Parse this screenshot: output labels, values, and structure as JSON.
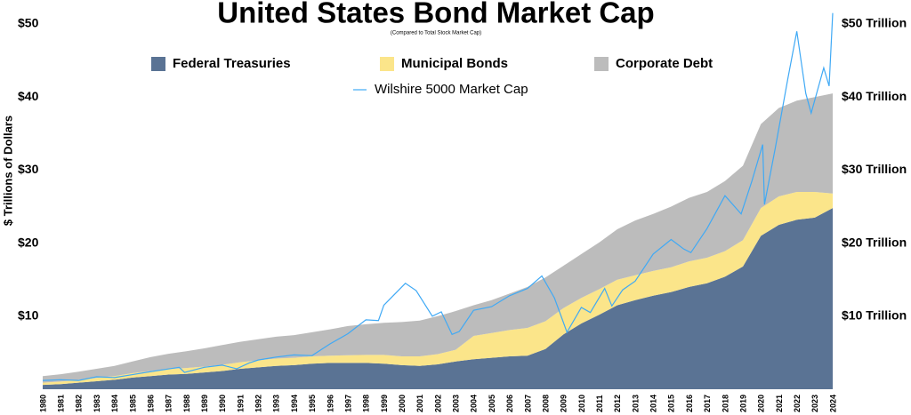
{
  "chart_data": {
    "type": "stacked-area-line",
    "title": "United States Bond Market Cap",
    "subtitle": "(Compared to Total Stock Market Cap)",
    "y_label": "$ Trillions of Dollars",
    "x": [
      1980,
      1981,
      1982,
      1983,
      1984,
      1985,
      1986,
      1987,
      1988,
      1989,
      1990,
      1991,
      1992,
      1993,
      1994,
      1995,
      1996,
      1997,
      1998,
      1999,
      2000,
      2001,
      2002,
      2003,
      2004,
      2005,
      2006,
      2007,
      2008,
      2009,
      2010,
      2011,
      2012,
      2013,
      2014,
      2015,
      2016,
      2017,
      2018,
      2019,
      2020,
      2021,
      2022,
      2023,
      2024
    ],
    "xlim": [
      1980,
      2024
    ],
    "xticks": [
      1980,
      1981,
      1982,
      1983,
      1984,
      1985,
      1986,
      1987,
      1988,
      1989,
      1990,
      1991,
      1992,
      1993,
      1994,
      1995,
      1996,
      1997,
      1998,
      1999,
      2000,
      2001,
      2002,
      2003,
      2004,
      2005,
      2006,
      2007,
      2008,
      2009,
      2010,
      2011,
      2012,
      2013,
      2014,
      2015,
      2016,
      2017,
      2018,
      2019,
      2020,
      2021,
      2022,
      2023,
      2024
    ],
    "ylim": [
      0,
      50
    ],
    "yticks": [
      {
        "value": 10,
        "label": "$10"
      },
      {
        "value": 20,
        "label": "$20"
      },
      {
        "value": 30,
        "label": "$30"
      },
      {
        "value": 40,
        "label": "$40"
      },
      {
        "value": 50,
        "label": "$50"
      }
    ],
    "y2lim": [
      0,
      50
    ],
    "y2ticks": [
      {
        "value": 10,
        "label": "$10 Trillion"
      },
      {
        "value": 20,
        "label": "$20 Trillion"
      },
      {
        "value": 30,
        "label": "$30 Trillion"
      },
      {
        "value": 40,
        "label": "$40 Trillion"
      },
      {
        "value": 50,
        "label": "$50 Trillion"
      }
    ],
    "series": [
      {
        "name": "Federal Treasuries",
        "color": "#5a7394",
        "values": [
          0.6,
          0.7,
          0.9,
          1.1,
          1.3,
          1.6,
          1.8,
          2.0,
          2.1,
          2.3,
          2.5,
          2.8,
          3.0,
          3.2,
          3.3,
          3.5,
          3.6,
          3.6,
          3.6,
          3.5,
          3.3,
          3.2,
          3.4,
          3.8,
          4.1,
          4.3,
          4.5,
          4.6,
          5.5,
          7.5,
          9.0,
          10.2,
          11.5,
          12.2,
          12.8,
          13.3,
          14.0,
          14.5,
          15.4,
          16.8,
          21.0,
          22.5,
          23.2,
          23.5,
          24.8
        ]
      },
      {
        "name": "Municipal Bonds",
        "color": "#fbe58a",
        "values": [
          0.3,
          0.35,
          0.4,
          0.45,
          0.5,
          0.6,
          0.7,
          0.75,
          0.8,
          0.8,
          0.85,
          0.9,
          0.95,
          1.0,
          1.0,
          1.0,
          1.0,
          1.05,
          1.1,
          1.2,
          1.2,
          1.3,
          1.4,
          1.6,
          3.2,
          3.4,
          3.6,
          3.8,
          3.8,
          3.6,
          3.5,
          3.5,
          3.5,
          3.4,
          3.4,
          3.4,
          3.5,
          3.5,
          3.5,
          3.6,
          3.8,
          3.9,
          3.8,
          3.5,
          2.0
        ]
      },
      {
        "name": "Corporate Debt",
        "color": "#bcbcbc",
        "values": [
          0.9,
          1.0,
          1.1,
          1.25,
          1.4,
          1.6,
          1.9,
          2.1,
          2.3,
          2.5,
          2.7,
          2.8,
          2.9,
          3.0,
          3.1,
          3.3,
          3.6,
          4.0,
          4.2,
          4.4,
          4.7,
          4.9,
          5.2,
          5.3,
          4.2,
          4.5,
          5.0,
          5.6,
          6.0,
          5.8,
          6.0,
          6.4,
          6.9,
          7.5,
          7.8,
          8.3,
          8.7,
          9.0,
          9.6,
          10.2,
          11.5,
          12.1,
          12.5,
          13.0,
          13.7
        ]
      },
      {
        "name": "Wilshire 5000 Market Cap",
        "color": "#3fa9f5",
        "line": true,
        "x": [
          1980,
          1981,
          1982,
          1983,
          1984,
          1985,
          1986,
          1987.6,
          1987.9,
          1989,
          1990,
          1990.8,
          1991.5,
          1992,
          1993,
          1994,
          1995,
          1996,
          1997,
          1998,
          1998.7,
          1999,
          2000.2,
          2000.8,
          2001.7,
          2002.2,
          2002.8,
          2003.2,
          2004,
          2005,
          2006,
          2007,
          2007.8,
          2008.5,
          2009.2,
          2010,
          2010.5,
          2011.3,
          2011.7,
          2012.3,
          2013,
          2014,
          2015,
          2015.7,
          2016.1,
          2017,
          2018,
          2018.9,
          2019.5,
          2020.1,
          2020.2,
          2020.8,
          2021.5,
          2022,
          2022.5,
          2022.8,
          2023.5,
          2023.8,
          2024
        ],
        "values": [
          1.2,
          1.3,
          1.2,
          1.7,
          1.6,
          2.0,
          2.4,
          3.0,
          2.3,
          3.0,
          3.3,
          2.8,
          3.6,
          4.0,
          4.4,
          4.7,
          4.6,
          6.2,
          7.6,
          9.5,
          9.4,
          11.5,
          14.5,
          13.5,
          10.0,
          10.6,
          7.5,
          7.9,
          10.8,
          11.3,
          12.8,
          13.8,
          15.5,
          12.5,
          7.8,
          11.2,
          10.5,
          13.8,
          11.4,
          13.6,
          14.8,
          18.5,
          20.5,
          19.2,
          18.7,
          22.0,
          26.5,
          24.0,
          28.5,
          33.5,
          25.3,
          33.0,
          42.5,
          49.0,
          40.5,
          37.8,
          44.0,
          41.5,
          51.5
        ]
      }
    ]
  }
}
